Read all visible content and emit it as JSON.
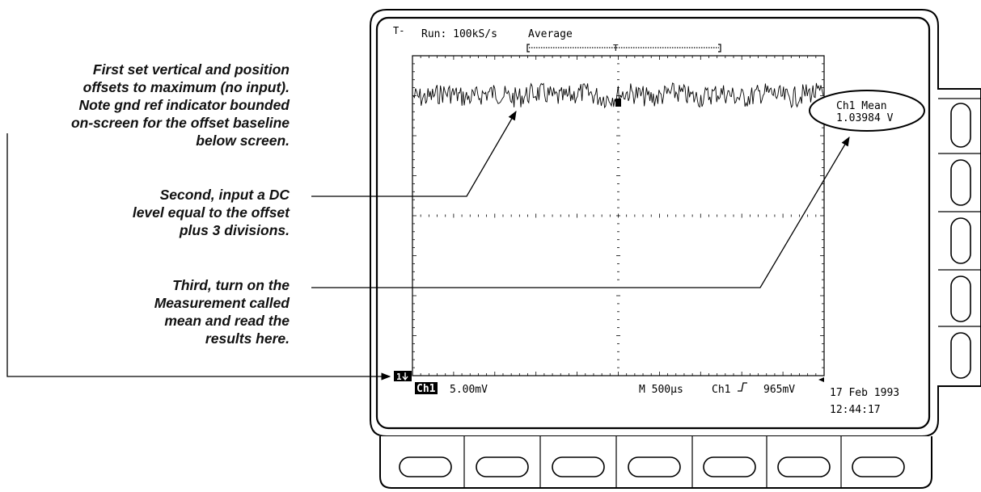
{
  "annotations": [
    {
      "lines": [
        "First set vertical and position",
        "offsets to maximum (no input).",
        "Note gnd ref indicator bounded",
        "on-screen for the offset baseline",
        "below screen."
      ]
    },
    {
      "lines": [
        "Second, input a DC",
        "level equal to the offset",
        "plus 3 divisions."
      ]
    },
    {
      "lines": [
        "Third, turn on the",
        "Measurement called",
        "mean and read the",
        "results here."
      ]
    }
  ],
  "screen": {
    "run_status": "Run: 100kS/s",
    "acq_mode": "Average",
    "trigger_label": "T",
    "channel_badge": "Ch1",
    "volts_per_div": "5.00mV",
    "timebase": "M 500µs",
    "trigger_source": "Ch1",
    "trigger_slope_icon": "rising-edge-icon",
    "trigger_level": "965mV",
    "date": "17 Feb 1993",
    "time": "12:44:17",
    "ground_marker": "1",
    "measurement": {
      "label": "Ch1 Mean",
      "value": "1.03984 V"
    }
  },
  "bezel": {
    "side_buttons": 5,
    "bottom_buttons": 7
  }
}
